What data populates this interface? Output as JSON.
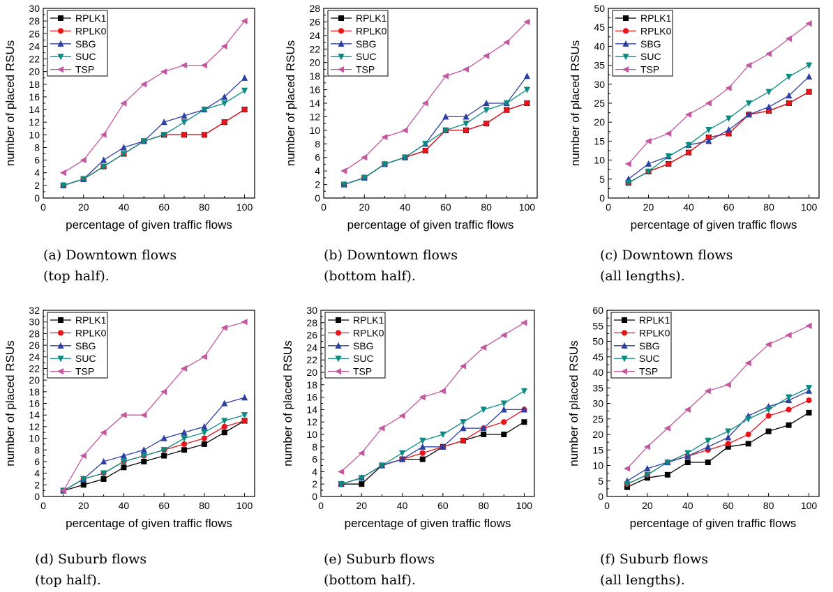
{
  "series_style": [
    {
      "name": "RPLK1",
      "color": "#000000",
      "marker": "square"
    },
    {
      "name": "RPLK0",
      "color": "#e8141c",
      "marker": "circle"
    },
    {
      "name": "SBG",
      "color": "#2e3fa3",
      "marker": "triangle-up"
    },
    {
      "name": "SUC",
      "color": "#0b8a82",
      "marker": "triangle-down"
    },
    {
      "name": "TSP",
      "color": "#c3589f",
      "marker": "triangle-left"
    }
  ],
  "chart_data": [
    {
      "type": "line",
      "caption_line1": "(a) Downtown flows",
      "caption_line2": "(top half).",
      "xlabel": "percentage of given traffic flows",
      "ylabel": "number of placed RSUs",
      "xlim": [
        0,
        105
      ],
      "ylim": [
        0,
        30
      ],
      "xticks": [
        0,
        20,
        40,
        60,
        80,
        100
      ],
      "yticks": [
        0,
        2,
        4,
        6,
        8,
        10,
        12,
        14,
        16,
        18,
        20,
        22,
        24,
        26,
        28,
        30
      ],
      "legend": "top-left",
      "x": [
        10,
        20,
        30,
        40,
        50,
        60,
        70,
        80,
        90,
        100
      ],
      "series": [
        {
          "name": "RPLK1",
          "values": [
            2,
            3,
            5,
            7,
            9,
            10,
            10,
            10,
            12,
            14
          ]
        },
        {
          "name": "RPLK0",
          "values": [
            2,
            3,
            5,
            7,
            9,
            10,
            10,
            10,
            12,
            14
          ]
        },
        {
          "name": "SBG",
          "values": [
            2,
            3,
            6,
            8,
            9,
            12,
            13,
            14,
            16,
            19
          ]
        },
        {
          "name": "SUC",
          "values": [
            2,
            3,
            5,
            7,
            9,
            10,
            12,
            14,
            15,
            17
          ]
        },
        {
          "name": "TSP",
          "values": [
            4,
            6,
            10,
            15,
            18,
            20,
            21,
            21,
            24,
            28
          ]
        }
      ]
    },
    {
      "type": "line",
      "caption_line1": "(b) Downtown flows",
      "caption_line2": "(bottom half).",
      "xlabel": "percentage of given traffic flows",
      "ylabel": "number of placed RSUs",
      "xlim": [
        0,
        105
      ],
      "ylim": [
        0,
        28
      ],
      "xticks": [
        0,
        20,
        40,
        60,
        80,
        100
      ],
      "yticks": [
        0,
        2,
        4,
        6,
        8,
        10,
        12,
        14,
        16,
        18,
        20,
        22,
        24,
        26,
        28
      ],
      "legend": "top-left",
      "x": [
        10,
        20,
        30,
        40,
        50,
        60,
        70,
        80,
        90,
        100
      ],
      "series": [
        {
          "name": "RPLK1",
          "values": [
            2,
            3,
            5,
            6,
            7,
            10,
            10,
            11,
            13,
            14
          ]
        },
        {
          "name": "RPLK0",
          "values": [
            2,
            3,
            5,
            6,
            7,
            10,
            10,
            11,
            13,
            14
          ]
        },
        {
          "name": "SBG",
          "values": [
            2,
            3,
            5,
            6,
            8,
            12,
            12,
            14,
            14,
            18
          ]
        },
        {
          "name": "SUC",
          "values": [
            2,
            3,
            5,
            6,
            8,
            10,
            11,
            13,
            14,
            16
          ]
        },
        {
          "name": "TSP",
          "values": [
            4,
            6,
            9,
            10,
            14,
            18,
            19,
            21,
            23,
            26
          ]
        }
      ]
    },
    {
      "type": "line",
      "caption_line1": "(c) Downtown flows",
      "caption_line2": "(all lengths).",
      "xlabel": "percentage of given traffic flows",
      "ylabel": "number of placed RSUs",
      "xlim": [
        0,
        105
      ],
      "ylim": [
        0,
        50
      ],
      "xticks": [
        0,
        20,
        40,
        60,
        80,
        100
      ],
      "yticks": [
        0,
        5,
        10,
        15,
        20,
        25,
        30,
        35,
        40,
        45,
        50
      ],
      "legend": "top-left",
      "x": [
        10,
        20,
        30,
        40,
        50,
        60,
        70,
        80,
        90,
        100
      ],
      "series": [
        {
          "name": "RPLK1",
          "values": [
            4,
            7,
            9,
            12,
            16,
            17,
            22,
            23,
            25,
            28
          ]
        },
        {
          "name": "RPLK0",
          "values": [
            4,
            7,
            9,
            12,
            16,
            17,
            22,
            23,
            25,
            28
          ]
        },
        {
          "name": "SBG",
          "values": [
            5,
            9,
            11,
            14,
            15,
            18,
            22,
            24,
            27,
            32
          ]
        },
        {
          "name": "SUC",
          "values": [
            4,
            7,
            11,
            14,
            18,
            21,
            25,
            28,
            32,
            35
          ]
        },
        {
          "name": "TSP",
          "values": [
            9,
            15,
            17,
            22,
            25,
            29,
            35,
            38,
            42,
            46
          ]
        }
      ]
    },
    {
      "type": "line",
      "caption_line1": "(d) Suburb flows",
      "caption_line2": "(top half).",
      "xlabel": "percentage of given traffic flows",
      "ylabel": "number of placed RSUs",
      "xlim": [
        0,
        105
      ],
      "ylim": [
        0,
        32
      ],
      "xticks": [
        0,
        20,
        40,
        60,
        80,
        100
      ],
      "yticks": [
        0,
        2,
        4,
        6,
        8,
        10,
        12,
        14,
        16,
        18,
        20,
        22,
        24,
        26,
        28,
        30,
        32
      ],
      "legend": "top-left",
      "x": [
        10,
        20,
        30,
        40,
        50,
        60,
        70,
        80,
        90,
        100
      ],
      "series": [
        {
          "name": "RPLK1",
          "values": [
            1,
            2,
            3,
            5,
            6,
            7,
            8,
            9,
            11,
            13
          ]
        },
        {
          "name": "RPLK0",
          "values": [
            1,
            3,
            4,
            6,
            7,
            8,
            9,
            10,
            12,
            13
          ]
        },
        {
          "name": "SBG",
          "values": [
            1,
            3,
            6,
            7,
            8,
            10,
            11,
            12,
            16,
            17
          ]
        },
        {
          "name": "SUC",
          "values": [
            1,
            3,
            4,
            6,
            7,
            8,
            10,
            11,
            13,
            14
          ]
        },
        {
          "name": "TSP",
          "values": [
            1,
            7,
            11,
            14,
            14,
            18,
            22,
            24,
            29,
            30
          ]
        }
      ]
    },
    {
      "type": "line",
      "caption_line1": "(e) Suburb flows",
      "caption_line2": "(bottom half).",
      "xlabel": "percentage of given traffic flows",
      "ylabel": "number of placed RSUs",
      "xlim": [
        0,
        105
      ],
      "ylim": [
        0,
        30
      ],
      "xticks": [
        0,
        20,
        40,
        60,
        80,
        100
      ],
      "yticks": [
        0,
        2,
        4,
        6,
        8,
        10,
        12,
        14,
        16,
        18,
        20,
        22,
        24,
        26,
        28,
        30
      ],
      "legend": "top-left",
      "x": [
        10,
        20,
        30,
        40,
        50,
        60,
        70,
        80,
        90,
        100
      ],
      "series": [
        {
          "name": "RPLK1",
          "values": [
            2,
            2,
            5,
            6,
            6,
            8,
            9,
            10,
            10,
            12
          ]
        },
        {
          "name": "RPLK0",
          "values": [
            2,
            3,
            5,
            6,
            7,
            8,
            9,
            11,
            12,
            14
          ]
        },
        {
          "name": "SBG",
          "values": [
            2,
            3,
            5,
            6,
            8,
            8,
            11,
            11,
            14,
            14
          ]
        },
        {
          "name": "SUC",
          "values": [
            2,
            3,
            5,
            7,
            9,
            10,
            12,
            14,
            15,
            17
          ]
        },
        {
          "name": "TSP",
          "values": [
            4,
            7,
            11,
            13,
            16,
            17,
            21,
            24,
            26,
            28
          ]
        }
      ]
    },
    {
      "type": "line",
      "caption_line1": "(f) Suburb flows",
      "caption_line2": "(all lengths).",
      "xlabel": "percentage of given traffic flows",
      "ylabel": "number of placed RSUs",
      "xlim": [
        0,
        105
      ],
      "ylim": [
        0,
        60
      ],
      "xticks": [
        0,
        20,
        40,
        60,
        80,
        100
      ],
      "yticks": [
        0,
        5,
        10,
        15,
        20,
        25,
        30,
        35,
        40,
        45,
        50,
        55,
        60
      ],
      "legend": "top-left",
      "x": [
        10,
        20,
        30,
        40,
        50,
        60,
        70,
        80,
        90,
        100
      ],
      "series": [
        {
          "name": "RPLK1",
          "values": [
            3,
            6,
            7,
            11,
            11,
            16,
            17,
            21,
            23,
            27
          ]
        },
        {
          "name": "RPLK0",
          "values": [
            4,
            7,
            11,
            13,
            15,
            17,
            20,
            26,
            28,
            31
          ]
        },
        {
          "name": "SBG",
          "values": [
            5,
            9,
            11,
            13,
            16,
            19,
            26,
            29,
            31,
            34
          ]
        },
        {
          "name": "SUC",
          "values": [
            4,
            7,
            11,
            14,
            18,
            21,
            25,
            28,
            32,
            35
          ]
        },
        {
          "name": "TSP",
          "values": [
            9,
            16,
            22,
            28,
            34,
            36,
            43,
            49,
            52,
            55
          ]
        }
      ]
    }
  ]
}
